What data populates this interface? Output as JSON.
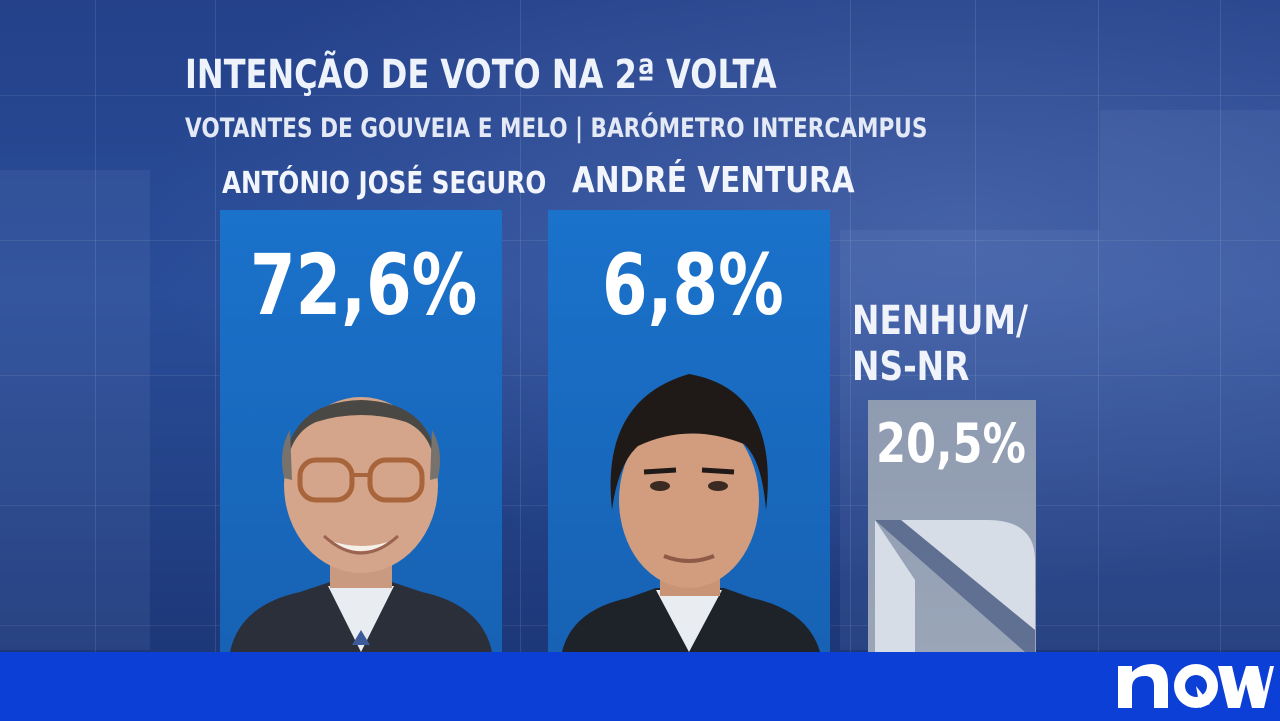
{
  "chart_data": {
    "type": "bar",
    "title": "INTENÇÃO DE VOTO NA 2ª VOLTA",
    "subtitle": "VOTANTES  DE GOUVEIA E MELO | BARÓMETRO INTERCAMPUS",
    "categories": [
      "ANTÓNIO JOSÉ SEGURO",
      "ANDRÉ VENTURA",
      "NENHUM/ NS-NR"
    ],
    "values": [
      72.6,
      6.8,
      20.5
    ],
    "value_labels": [
      "72,6%",
      "6,8%",
      "20,5%"
    ],
    "unit": "%",
    "ylim": [
      0,
      100
    ],
    "grid": false,
    "legend": "none"
  },
  "colors": {
    "bar_candidate": "#1a72ca",
    "bar_other": "#8f9bb0",
    "background": "#24418a",
    "bottom_bar": "#0c3fd6",
    "logo": "#ffffff"
  },
  "photos": [
    "portrait-seguro",
    "portrait-ventura"
  ],
  "other_label_lines": [
    "NENHUM/",
    "NS-NR"
  ],
  "brand": {
    "logo_text": "now",
    "logo_icon": "now-logo-icon"
  }
}
